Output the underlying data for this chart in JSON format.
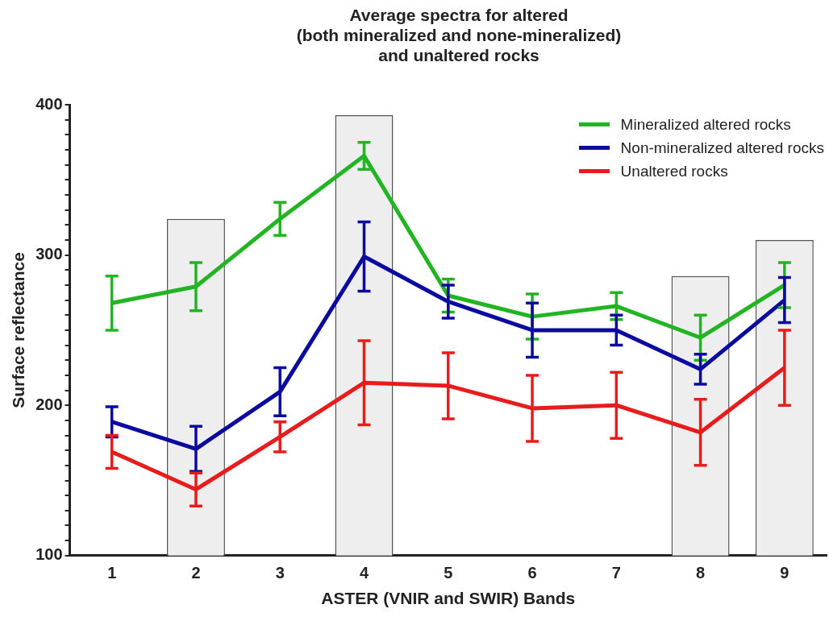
{
  "chart_data": {
    "type": "line",
    "title": "Average spectra for altered\n(both mineralized and none-mineralized)\nand unaltered rocks",
    "xlabel": "ASTER (VNIR and SWIR) Bands",
    "ylabel": "Surface reflectance",
    "categories": [
      "1",
      "2",
      "3",
      "4",
      "5",
      "6",
      "7",
      "8",
      "9"
    ],
    "series": [
      {
        "type": "bar",
        "color": "#eeeeee",
        "values": [
          null,
          324,
          null,
          393,
          null,
          null,
          null,
          286,
          310
        ]
      },
      {
        "name": "Mineralized altered rocks",
        "color": "#22b422",
        "values": [
          268,
          279,
          324,
          366,
          273,
          259,
          266,
          245,
          280
        ],
        "errors": [
          18,
          16,
          11,
          9,
          11,
          15,
          9,
          15,
          15
        ]
      },
      {
        "name": "Non-mineralized altered rocks",
        "color": "#0a0aa0",
        "values": [
          189,
          171,
          209,
          299,
          269,
          250,
          250,
          224,
          270
        ],
        "errors": [
          10,
          15,
          16,
          23,
          11,
          18,
          10,
          10,
          15
        ]
      },
      {
        "name": "Unaltered rocks",
        "color": "#e81c1c",
        "values": [
          169,
          144,
          179,
          215,
          213,
          198,
          200,
          182,
          225
        ],
        "errors": [
          11,
          11,
          10,
          28,
          22,
          22,
          22,
          22,
          25
        ]
      }
    ],
    "ylim": [
      100,
      400
    ],
    "yticks": [
      100,
      {
        "value": 110,
        "label": null
      },
      {
        "value": 120,
        "label": null
      },
      {
        "value": 130,
        "label": null
      },
      {
        "value": 140,
        "label": null
      },
      {
        "value": 150,
        "label": null
      },
      {
        "value": 160,
        "label": null
      },
      {
        "value": 170,
        "label": null
      },
      {
        "value": 180,
        "label": null
      },
      {
        "value": 190,
        "label": null
      },
      200,
      {
        "value": 210,
        "label": null
      },
      {
        "value": 220,
        "label": null
      },
      {
        "value": 230,
        "label": null
      },
      {
        "value": 240,
        "label": null
      },
      {
        "value": 250,
        "label": null
      },
      {
        "value": 260,
        "label": null
      },
      {
        "value": 270,
        "label": null
      },
      {
        "value": 280,
        "label": null
      },
      {
        "value": 290,
        "label": null
      },
      300,
      {
        "value": 310,
        "label": null
      },
      {
        "value": 320,
        "label": null
      },
      {
        "value": 330,
        "label": null
      },
      {
        "value": 340,
        "label": null
      },
      {
        "value": 350,
        "label": null
      },
      {
        "value": 360,
        "label": null
      },
      {
        "value": 370,
        "label": null
      },
      {
        "value": 380,
        "label": null
      },
      {
        "value": 390,
        "label": null
      },
      400
    ],
    "legend": "top right",
    "marker": "none",
    "line_style": "solid"
  }
}
